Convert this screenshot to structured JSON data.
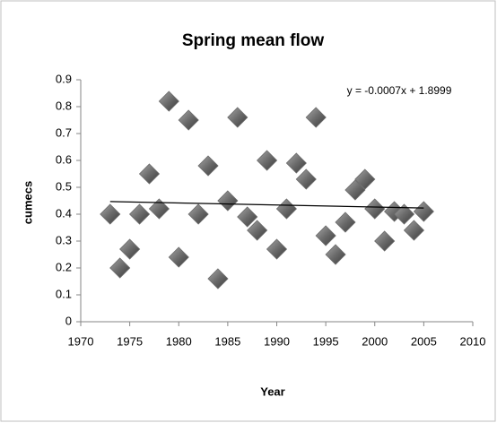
{
  "chart_data": {
    "type": "scatter",
    "title": "Spring mean flow",
    "x_label": "Year",
    "y_label": "cumecs",
    "annotation": "y = -0.0007x + 1.8999",
    "color": "#6b6b6b",
    "x": [
      1973,
      1974,
      1975,
      1976,
      1977,
      1978,
      1979,
      1980,
      1981,
      1982,
      1983,
      1984,
      1985,
      1986,
      1987,
      1988,
      1989,
      1990,
      1991,
      1992,
      1993,
      1994,
      1995,
      1996,
      1997,
      1998,
      1999,
      2000,
      2001,
      2002,
      2003,
      2004,
      2005
    ],
    "values": [
      0.4,
      0.2,
      0.27,
      0.4,
      0.55,
      0.42,
      0.82,
      0.24,
      0.75,
      0.4,
      0.58,
      0.16,
      0.45,
      0.76,
      0.39,
      0.34,
      0.6,
      0.27,
      0.42,
      0.59,
      0.53,
      0.76,
      0.32,
      0.25,
      0.37,
      0.49,
      0.53,
      0.42,
      0.3,
      0.41,
      0.4,
      0.34,
      0.41
    ],
    "trendline": {
      "x": [
        1973,
        2005
      ],
      "values": [
        0.447,
        0.423
      ]
    },
    "xlim": [
      1970,
      2010
    ],
    "xticks": [
      1970,
      1975,
      1980,
      1985,
      1990,
      1995,
      2000,
      2005,
      2010
    ],
    "ylim": [
      0,
      0.9
    ],
    "yticks": [
      0,
      0.1,
      0.2,
      0.3,
      0.4,
      0.5,
      0.6,
      0.7,
      0.8,
      0.9
    ]
  }
}
